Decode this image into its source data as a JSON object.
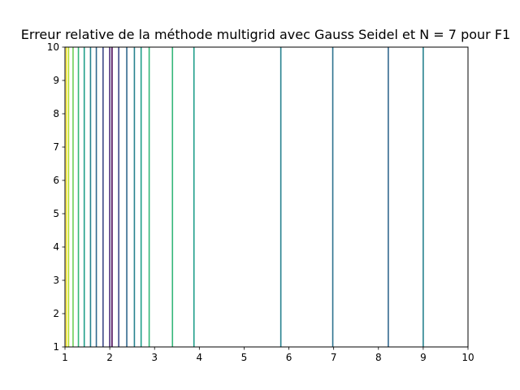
{
  "chart_data": {
    "type": "line",
    "title": "Erreur relative de la méthode multigrid avec Gauss Seidel et N = 7 pour F1",
    "xlabel": "",
    "ylabel": "",
    "xlim": [
      1,
      10
    ],
    "ylim": [
      1,
      10
    ],
    "grid": false,
    "x_ticks": [
      "1",
      "2",
      "3",
      "4",
      "5",
      "6",
      "7",
      "8",
      "9",
      "10"
    ],
    "y_ticks": [
      "1",
      "2",
      "3",
      "4",
      "5",
      "6",
      "7",
      "8",
      "9",
      "10"
    ],
    "series": [
      {
        "x": 1.03,
        "color": "#fde725"
      },
      {
        "x": 1.08,
        "color": "#b5de2b"
      },
      {
        "x": 1.18,
        "color": "#6ece58"
      },
      {
        "x": 1.3,
        "color": "#35b779"
      },
      {
        "x": 1.43,
        "color": "#1f9e89"
      },
      {
        "x": 1.57,
        "color": "#26828e"
      },
      {
        "x": 1.7,
        "color": "#31688e"
      },
      {
        "x": 1.85,
        "color": "#3e4989"
      },
      {
        "x": 2.0,
        "color": "#482878"
      },
      {
        "x": 2.05,
        "color": "#440154"
      },
      {
        "x": 2.2,
        "color": "#3e4989"
      },
      {
        "x": 2.38,
        "color": "#31688e"
      },
      {
        "x": 2.55,
        "color": "#26828e"
      },
      {
        "x": 2.7,
        "color": "#1f9e89"
      },
      {
        "x": 2.88,
        "color": "#35b779"
      },
      {
        "x": 3.4,
        "color": "#35b779"
      },
      {
        "x": 3.88,
        "color": "#1f9e89"
      },
      {
        "x": 5.82,
        "color": "#26828e"
      },
      {
        "x": 6.98,
        "color": "#2c728e"
      },
      {
        "x": 8.22,
        "color": "#31688e"
      },
      {
        "x": 9.0,
        "color": "#26828e"
      }
    ]
  }
}
